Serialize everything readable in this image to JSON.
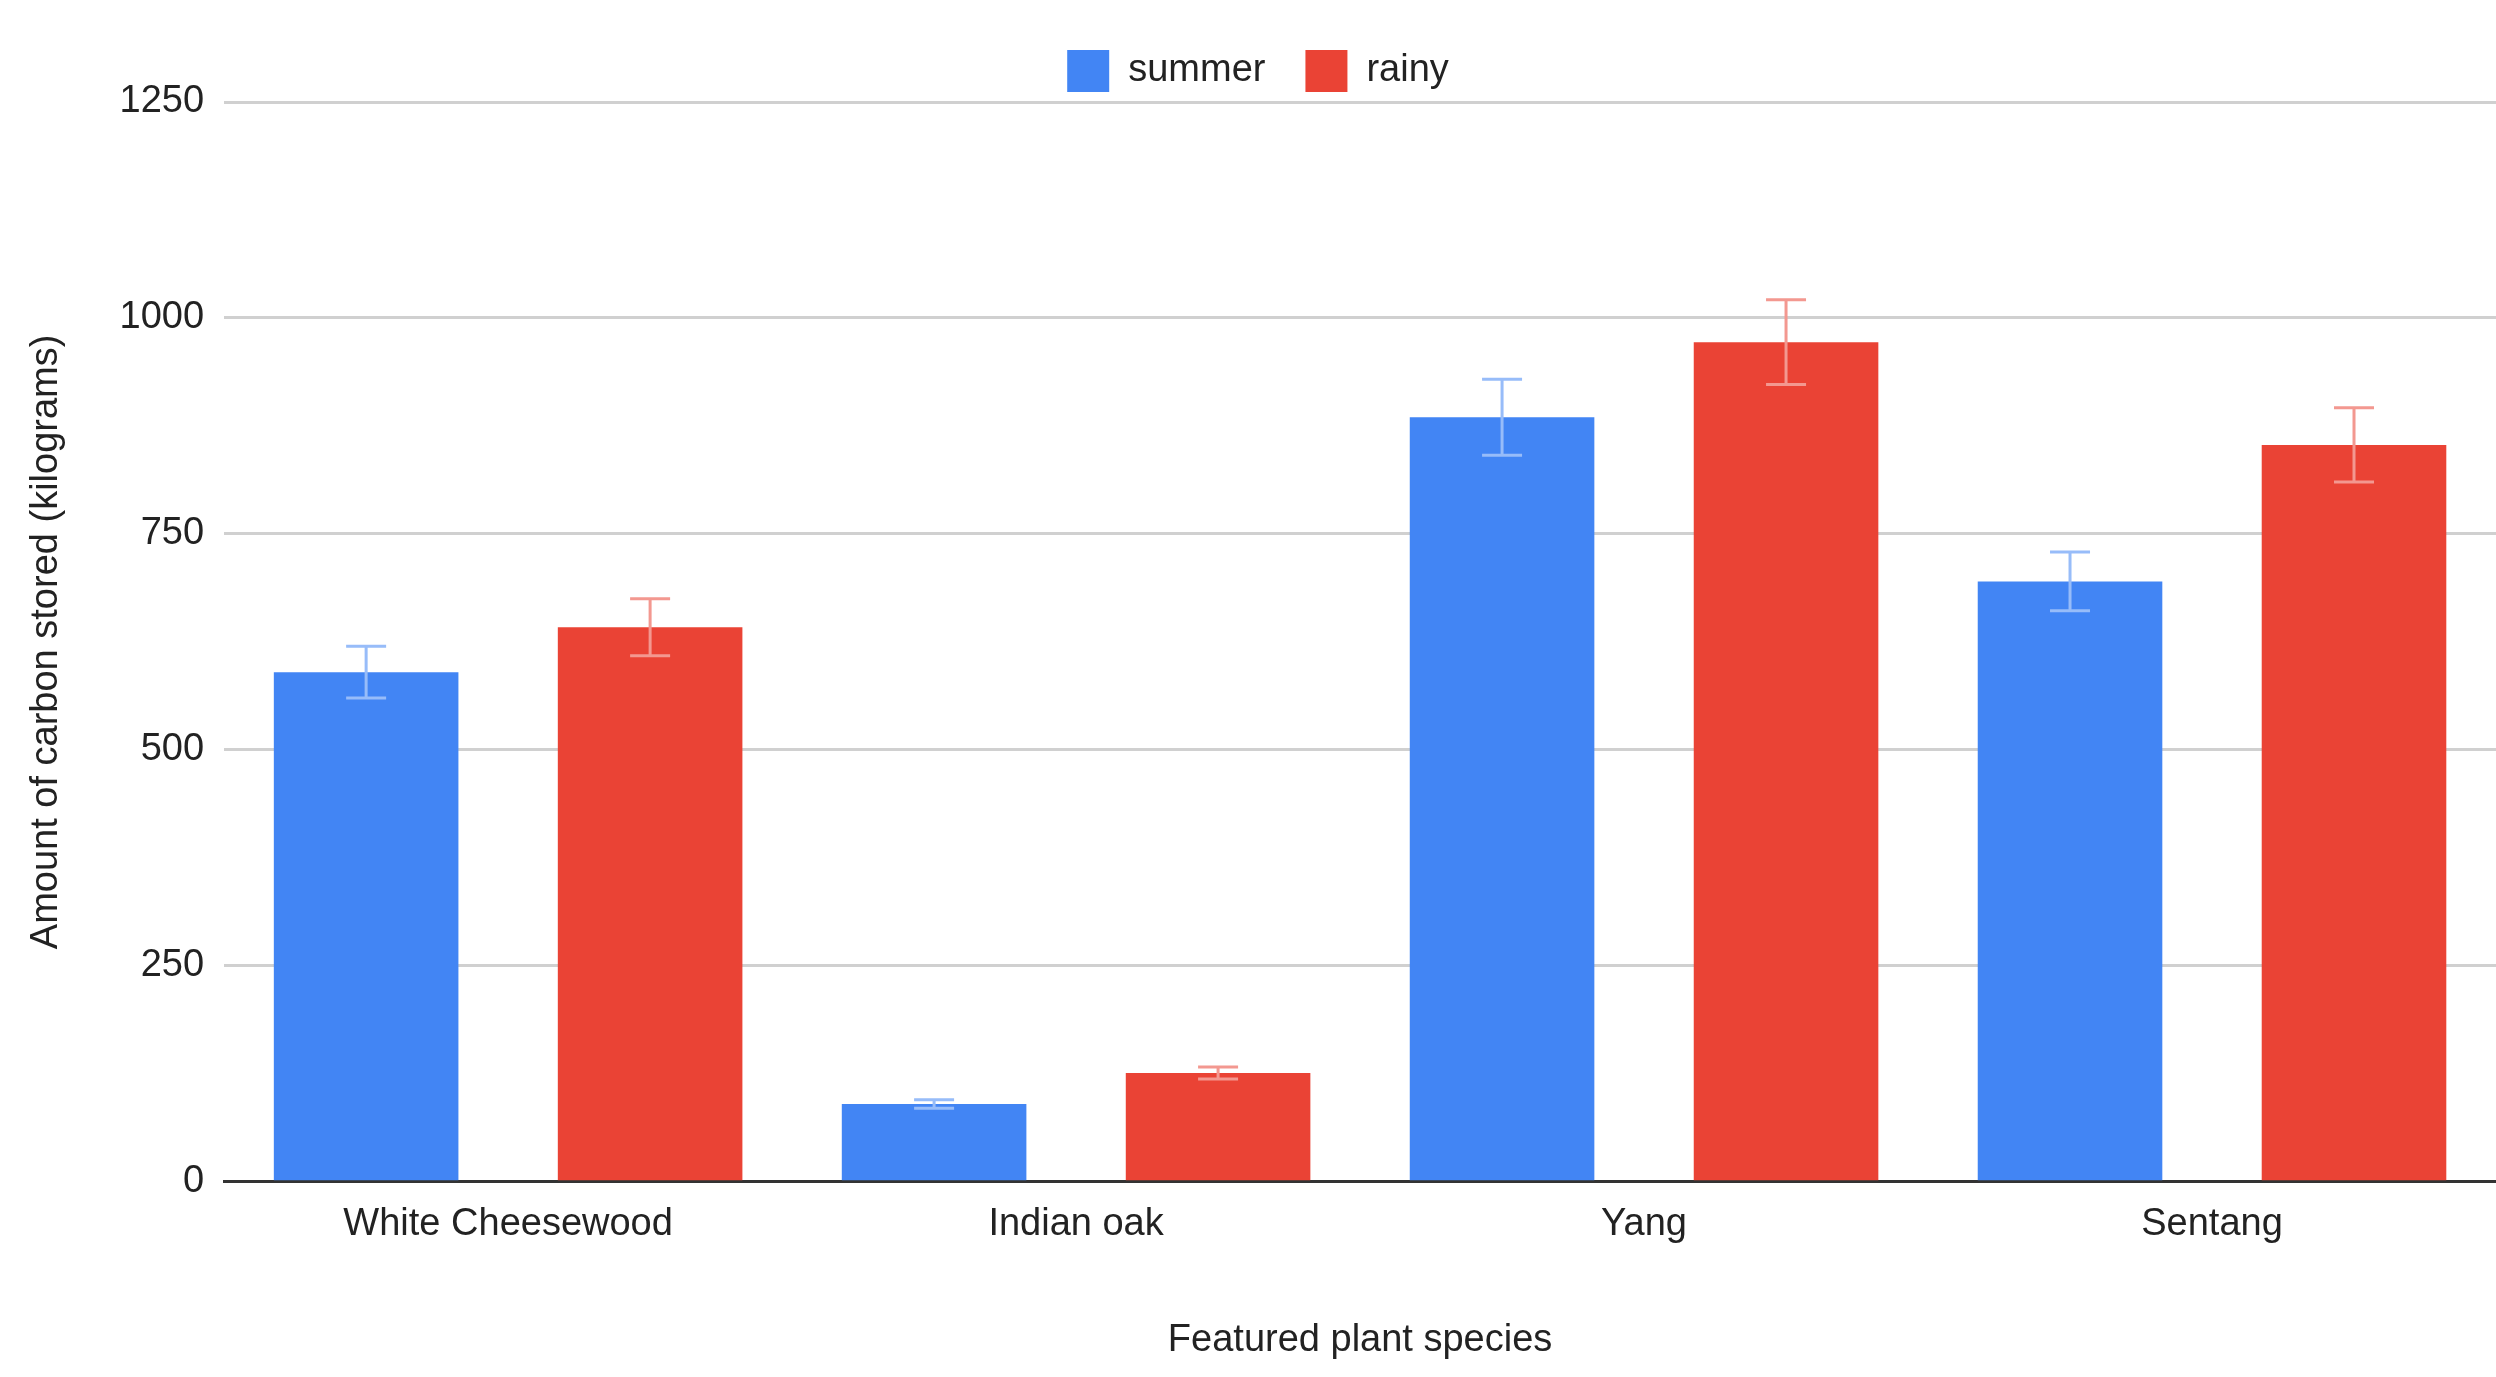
{
  "chart_data": {
    "type": "bar",
    "xlabel": "Featured plant species",
    "ylabel": "Amount of carbon stored (kilograms)",
    "categories": [
      "White Cheesewood",
      "Indian oak",
      "Yang",
      "Sentang"
    ],
    "series": [
      {
        "name": "summer",
        "color": "#4285f4",
        "values": [
          590,
          90,
          885,
          695
        ],
        "errors": [
          30,
          5,
          44,
          34
        ]
      },
      {
        "name": "rainy",
        "color": "#ea4335",
        "values": [
          642,
          126,
          972,
          853
        ],
        "errors": [
          33,
          7,
          49,
          43
        ]
      }
    ],
    "ylim": [
      0,
      1250
    ],
    "yticks": [
      0,
      250,
      500,
      750,
      1000,
      1250
    ],
    "grid": "y",
    "legend": "top"
  }
}
